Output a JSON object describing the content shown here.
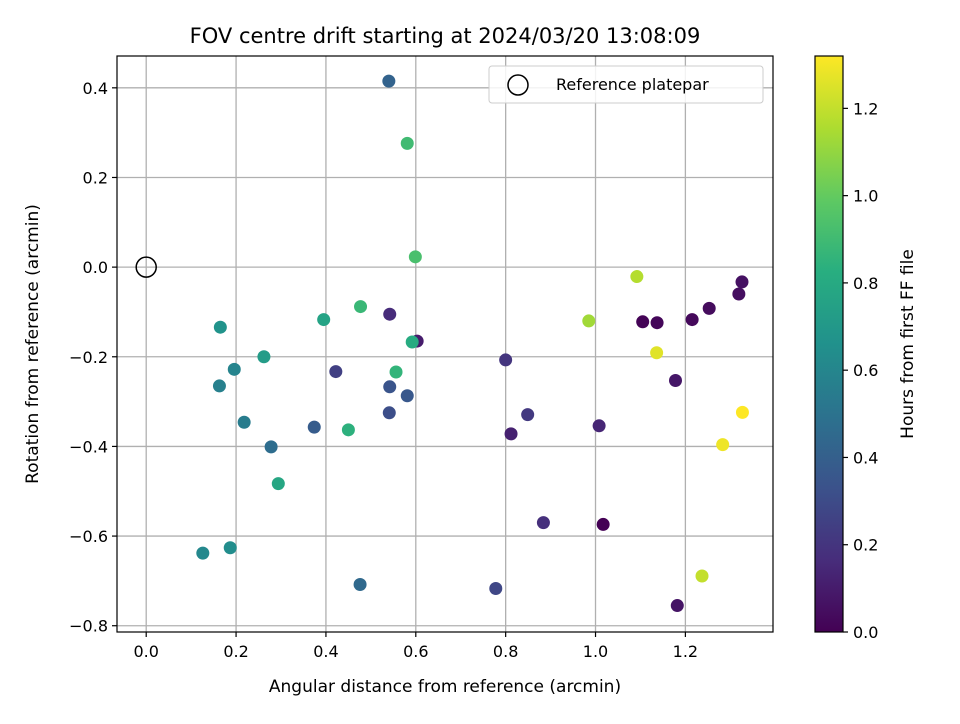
{
  "chart_data": {
    "type": "scatter",
    "title": "FOV centre drift starting at 2024/03/20 13:08:09",
    "xlabel": "Angular distance from reference (arcmin)",
    "ylabel": "Rotation from reference (arcmin)",
    "xlim": [
      -0.065,
      1.395
    ],
    "ylim": [
      -0.814,
      0.471
    ],
    "x_ticks": [
      0.0,
      0.2,
      0.4,
      0.6,
      0.8,
      1.0,
      1.2
    ],
    "x_tick_labels": [
      "0.0",
      "0.2",
      "0.4",
      "0.6",
      "0.8",
      "1.0",
      "1.2"
    ],
    "y_ticks": [
      -0.8,
      -0.6,
      -0.4,
      -0.2,
      0.0,
      0.2,
      0.4
    ],
    "y_tick_labels": [
      "−0.8",
      "−0.6",
      "−0.4",
      "−0.2",
      "0.0",
      "0.2",
      "0.4"
    ],
    "grid": true,
    "legend": {
      "placement": "top-right",
      "entries": [
        "Reference platepar"
      ]
    },
    "reference_point": {
      "x": 0.0,
      "y": 0.0,
      "label": "Reference platepar"
    },
    "colorbar": {
      "label": "Hours from first FF file",
      "colormap": "viridis",
      "range": [
        0.0,
        1.32
      ],
      "ticks": [
        0.0,
        0.2,
        0.4,
        0.6,
        0.8,
        1.0,
        1.2
      ],
      "tick_labels": [
        "0.0",
        "0.2",
        "0.4",
        "0.6",
        "0.8",
        "1.0",
        "1.2"
      ]
    },
    "points": [
      {
        "x": 1.017,
        "y": -0.574,
        "hours": 0.0
      },
      {
        "x": 1.105,
        "y": -0.122,
        "hours": 0.01
      },
      {
        "x": 1.137,
        "y": -0.124,
        "hours": 0.02
      },
      {
        "x": 1.215,
        "y": -0.117,
        "hours": 0.03
      },
      {
        "x": 1.253,
        "y": -0.092,
        "hours": 0.04
      },
      {
        "x": 1.319,
        "y": -0.06,
        "hours": 0.05
      },
      {
        "x": 1.326,
        "y": -0.033,
        "hours": 0.06
      },
      {
        "x": 1.182,
        "y": -0.755,
        "hours": 0.07
      },
      {
        "x": 1.178,
        "y": -0.253,
        "hours": 0.08
      },
      {
        "x": 0.603,
        "y": -0.165,
        "hours": 0.1
      },
      {
        "x": 0.812,
        "y": -0.372,
        "hours": 0.12
      },
      {
        "x": 1.008,
        "y": -0.354,
        "hours": 0.14
      },
      {
        "x": 0.542,
        "y": -0.105,
        "hours": 0.16
      },
      {
        "x": 0.884,
        "y": -0.57,
        "hours": 0.18
      },
      {
        "x": 0.8,
        "y": -0.207,
        "hours": 0.2
      },
      {
        "x": 0.849,
        "y": -0.329,
        "hours": 0.22
      },
      {
        "x": 0.422,
        "y": -0.233,
        "hours": 0.25
      },
      {
        "x": 0.778,
        "y": -0.717,
        "hours": 0.28
      },
      {
        "x": 0.541,
        "y": -0.325,
        "hours": 0.31
      },
      {
        "x": 0.542,
        "y": -0.267,
        "hours": 0.34
      },
      {
        "x": 0.581,
        "y": -0.287,
        "hours": 0.36
      },
      {
        "x": 0.374,
        "y": -0.357,
        "hours": 0.38
      },
      {
        "x": 0.54,
        "y": 0.415,
        "hours": 0.42
      },
      {
        "x": 0.476,
        "y": -0.708,
        "hours": 0.45
      },
      {
        "x": 0.278,
        "y": -0.401,
        "hours": 0.47
      },
      {
        "x": 0.218,
        "y": -0.346,
        "hours": 0.55
      },
      {
        "x": 0.163,
        "y": -0.265,
        "hours": 0.57
      },
      {
        "x": 0.196,
        "y": -0.228,
        "hours": 0.59
      },
      {
        "x": 0.126,
        "y": -0.638,
        "hours": 0.61
      },
      {
        "x": 0.187,
        "y": -0.626,
        "hours": 0.64
      },
      {
        "x": 0.165,
        "y": -0.134,
        "hours": 0.67
      },
      {
        "x": 0.262,
        "y": -0.2,
        "hours": 0.72
      },
      {
        "x": 0.395,
        "y": -0.117,
        "hours": 0.76
      },
      {
        "x": 0.294,
        "y": -0.483,
        "hours": 0.78
      },
      {
        "x": 0.592,
        "y": -0.167,
        "hours": 0.81
      },
      {
        "x": 0.45,
        "y": -0.363,
        "hours": 0.84
      },
      {
        "x": 0.556,
        "y": -0.234,
        "hours": 0.86
      },
      {
        "x": 0.477,
        "y": -0.088,
        "hours": 0.88
      },
      {
        "x": 0.581,
        "y": 0.276,
        "hours": 0.9
      },
      {
        "x": 0.599,
        "y": 0.023,
        "hours": 0.93
      },
      {
        "x": 0.985,
        "y": -0.12,
        "hours": 1.13
      },
      {
        "x": 1.092,
        "y": -0.021,
        "hours": 1.17
      },
      {
        "x": 1.237,
        "y": -0.689,
        "hours": 1.2
      },
      {
        "x": 1.136,
        "y": -0.191,
        "hours": 1.26
      },
      {
        "x": 1.283,
        "y": -0.396,
        "hours": 1.29
      },
      {
        "x": 1.327,
        "y": -0.324,
        "hours": 1.32
      }
    ]
  }
}
